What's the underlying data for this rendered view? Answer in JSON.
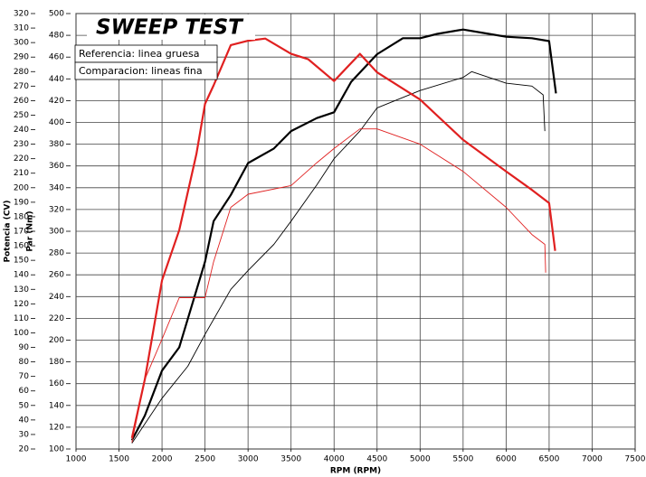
{
  "chart_data": {
    "type": "line",
    "title": "SWEEP TEST",
    "legend_notes": [
      "Referencia: linea gruesa",
      "Comparacion: lineas fina"
    ],
    "xlabel": "RPM (RPM)",
    "ylabel": "Potencia (CV)",
    "y2label": "Par (Nm)",
    "y2label_color": "#e02020",
    "xlim": [
      1000,
      7500
    ],
    "xticks": [
      1000,
      1500,
      2000,
      2500,
      3000,
      3500,
      4000,
      4500,
      5000,
      5500,
      6000,
      6500,
      7000,
      7500
    ],
    "ylim": [
      20,
      320
    ],
    "yticks": [
      20,
      30,
      40,
      50,
      60,
      70,
      80,
      90,
      100,
      110,
      120,
      130,
      140,
      150,
      160,
      170,
      180,
      190,
      200,
      210,
      220,
      230,
      240,
      250,
      260,
      270,
      280,
      290,
      300,
      310,
      320
    ],
    "y2lim": [
      100,
      500
    ],
    "y2ticks": [
      100,
      120,
      140,
      160,
      180,
      200,
      220,
      240,
      260,
      280,
      300,
      320,
      340,
      360,
      380,
      400,
      420,
      440,
      460,
      480,
      500
    ],
    "grid": true,
    "series": [
      {
        "color": "#000000",
        "line_width": 2.2,
        "axis": "y",
        "x": [
          1650,
          1800,
          2000,
          2200,
          2500,
          2600,
          2800,
          3000,
          3300,
          3500,
          3800,
          4000,
          4200,
          4500,
          4800,
          5000,
          5200,
          5500,
          5800,
          6000,
          6300,
          6500,
          6580
        ],
        "values": [
          26,
          43,
          74,
          90,
          149,
          177,
          195,
          217,
          227,
          239,
          248,
          252,
          273,
          292,
          303,
          303,
          306,
          309,
          306,
          304,
          303,
          301,
          265
        ]
      },
      {
        "color": "#000000",
        "line_width": 0.9,
        "axis": "y",
        "x": [
          1650,
          2000,
          2300,
          2500,
          2800,
          3000,
          3300,
          3500,
          3800,
          4000,
          4300,
          4500,
          5000,
          5500,
          5600,
          6000,
          6300,
          6430,
          6450
        ],
        "values": [
          24,
          55,
          77,
          99,
          130,
          143,
          161,
          177,
          202,
          220,
          239,
          255,
          267,
          276,
          280,
          272,
          270,
          264,
          239
        ]
      },
      {
        "color": "#e02020",
        "line_width": 2.2,
        "axis": "y2",
        "x": [
          1650,
          1800,
          2000,
          2200,
          2400,
          2500,
          2600,
          2800,
          3000,
          3200,
          3500,
          3700,
          4000,
          4300,
          4500,
          5000,
          5500,
          6000,
          6300,
          6500,
          6570
        ],
        "values": [
          110,
          164,
          255,
          301,
          371,
          417,
          434,
          471,
          475,
          477,
          463,
          458,
          438,
          463,
          446,
          421,
          384,
          355,
          338,
          326,
          282
        ]
      },
      {
        "color": "#e02020",
        "line_width": 0.9,
        "axis": "y2",
        "x": [
          1650,
          1800,
          2000,
          2200,
          2500,
          2600,
          2800,
          3000,
          3500,
          3800,
          4000,
          4300,
          4500,
          5000,
          5500,
          6000,
          6300,
          6450,
          6460
        ],
        "values": [
          106,
          164,
          201,
          239,
          239,
          272,
          322,
          334,
          342,
          363,
          376,
          394,
          394,
          380,
          355,
          322,
          297,
          288,
          262
        ]
      }
    ]
  }
}
